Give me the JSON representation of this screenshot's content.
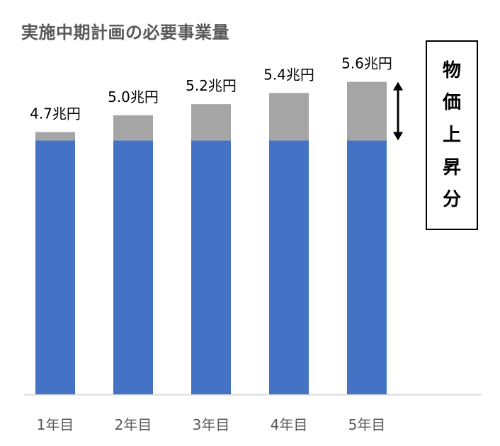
{
  "title": "実施中期計画の必要事業量",
  "inflation_label_chars": [
    "物",
    "価",
    "上",
    "昇",
    "分"
  ],
  "colors": {
    "base": "#4472C4",
    "increase": "#A5A5A5",
    "axis": "#D9D9D9",
    "text": "#000000",
    "title": "#595959"
  },
  "chart_data": {
    "type": "bar",
    "stacked": true,
    "categories": [
      "1年目",
      "2年目",
      "3年目",
      "4年目",
      "5年目"
    ],
    "series": [
      {
        "values": [
          4.55,
          4.55,
          4.55,
          4.55,
          4.55
        ]
      },
      {
        "name": "物価上昇分",
        "values": [
          0.15,
          0.45,
          0.65,
          0.85,
          1.05
        ]
      }
    ],
    "totals": [
      4.7,
      5.0,
      5.2,
      5.4,
      5.6
    ],
    "total_labels": [
      "4.7兆円",
      "5.0兆円",
      "5.2兆円",
      "5.4兆円",
      "5.6兆円"
    ],
    "ylim": [
      0,
      5.95
    ],
    "xlabel": "",
    "ylabel": ""
  }
}
